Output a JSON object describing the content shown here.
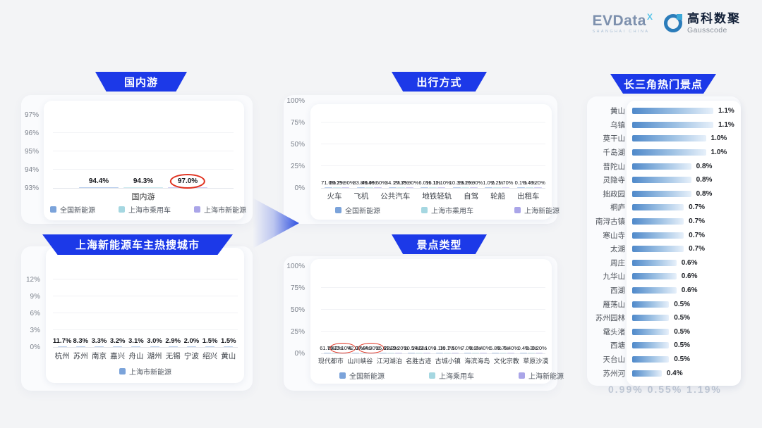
{
  "brand": {
    "evdata": "EVData",
    "evdata_sup": "X",
    "evdata_sub": "SHANGHAI CHINA",
    "gausscode_cn": "高科数聚",
    "gausscode_en": "Gausscode"
  },
  "colors": {
    "banner_blue": "#1c39e8",
    "series": [
      "#7ba3da",
      "#a5d7e1",
      "#aaa5e8"
    ],
    "hbar_gradient_start": "#4f89ca",
    "hbar_gradient_end": "#e7f0fa",
    "highlight_red": "#e0311f"
  },
  "watermark": "0.99%  0.55%  1.19%",
  "chart_data": [
    {
      "id": "domestic-travel",
      "type": "bar",
      "title": "国内游",
      "xlabel": "国内游",
      "categories": [
        "国内游"
      ],
      "ylim": [
        93,
        97
      ],
      "yticks": [
        "93%",
        "94%",
        "95%",
        "96%",
        "97%"
      ],
      "ytick_values": [
        93,
        94,
        95,
        96,
        97
      ],
      "series": [
        {
          "name": "全国新能源",
          "values": [
            94.4
          ],
          "labels": [
            "94.4%"
          ]
        },
        {
          "name": "上海市乘用车",
          "values": [
            94.3
          ],
          "labels": [
            "94.3%"
          ]
        },
        {
          "name": "上海市新能源",
          "values": [
            97.0
          ],
          "labels": [
            "97.0%"
          ],
          "highlight": [
            0
          ]
        }
      ]
    },
    {
      "id": "hot-cities",
      "type": "bar",
      "title": "上海新能源车主热搜城市",
      "xlabel": "",
      "categories": [
        "杭州",
        "苏州",
        "南京",
        "嘉兴",
        "舟山",
        "湖州",
        "无锡",
        "宁波",
        "绍兴",
        "黄山"
      ],
      "ylim": [
        0,
        13
      ],
      "yticks": [
        "0%",
        "3%",
        "6%",
        "9%",
        "12%"
      ],
      "ytick_values": [
        0,
        3,
        6,
        9,
        12
      ],
      "series": [
        {
          "name": "上海市新能源",
          "values": [
            11.7,
            8.3,
            3.3,
            3.2,
            3.1,
            3.0,
            2.9,
            2.0,
            1.5,
            1.5
          ],
          "labels": [
            "11.7%",
            "8.3%",
            "3.3%",
            "3.2%",
            "3.1%",
            "3.0%",
            "2.9%",
            "2.0%",
            "1.5%",
            "1.5%"
          ]
        }
      ]
    },
    {
      "id": "travel-modes",
      "type": "bar",
      "title": "出行方式",
      "xlabel": "",
      "categories": [
        "火车",
        "飞机",
        "公共汽车",
        "地铁轻轨",
        "自驾",
        "轮船",
        "出租车"
      ],
      "ylim": [
        0,
        100
      ],
      "yticks": [
        "0%",
        "25%",
        "50%",
        "75%",
        "100%"
      ],
      "ytick_values": [
        0,
        25,
        50,
        75,
        100
      ],
      "series": [
        {
          "name": "全国新能源",
          "values": [
            71.0,
            33.8,
            34.1,
            6.0,
            10.3,
            1.0,
            0.1
          ],
          "labels": [
            "71.0%",
            "33.8%",
            "34.1%",
            "6.0%",
            "10.3%",
            "1.0%",
            "0.1%"
          ]
        },
        {
          "name": "上海市乘用车",
          "values": [
            60.2,
            46.9,
            27.7,
            16.1,
            13.2,
            2.2,
            0.4
          ],
          "labels": [
            "60.2%",
            "46.9%",
            "27.7%",
            "16.1%",
            "13.2%",
            "2.2%",
            "0.4%"
          ]
        },
        {
          "name": "上海新能源",
          "values": [
            75.9,
            46.5,
            35.9,
            12.1,
            10.9,
            1.7,
            0.2
          ],
          "labels": [
            "75.90%",
            "46.50%",
            "35.90%",
            "12.10%",
            "10.90%",
            "1.70%",
            "0.20%"
          ]
        }
      ]
    },
    {
      "id": "attraction-types",
      "type": "bar",
      "title": "景点类型",
      "xlabel": "",
      "categories": [
        "现代都市",
        "山川峡谷",
        "江河湖泊",
        "名胜古迹",
        "古城小镇",
        "海滨海岛",
        "文化宗教",
        "草原沙漠"
      ],
      "ylim": [
        0,
        100
      ],
      "yticks": [
        "0%",
        "25%",
        "50%",
        "75%",
        "100%"
      ],
      "ytick_values": [
        0,
        25,
        50,
        75,
        100
      ],
      "series": [
        {
          "name": "全国新能源",
          "values": [
            61.7,
            42.0,
            15.6,
            10.5,
            3.1,
            7.0,
            5.8,
            0.4
          ],
          "labels": [
            "61.7%",
            "42.0%",
            "15.6%",
            "10.5%",
            "3.1%",
            "7.0%",
            "5.8%",
            "0.4%"
          ]
        },
        {
          "name": "上海乘用车",
          "values": [
            59.2,
            37.3,
            22.2,
            14.6,
            10.1,
            8.9,
            8.7,
            0.3
          ],
          "labels": [
            "59.2%",
            "37.3%",
            "22.2%",
            "14.6%",
            "10.1%",
            "8.9%",
            "8.7%",
            "0.3%"
          ]
        },
        {
          "name": "上海新能源",
          "values": [
            73.1,
            44.9,
            19.2,
            11.1,
            7.5,
            8.4,
            6.4,
            0.2
          ],
          "labels": [
            "73.10%",
            "44.90%",
            "19.20%",
            "11.10%",
            "7.50%",
            "8.40%",
            "6.40%",
            "0.20%"
          ],
          "highlight": [
            0,
            1
          ]
        }
      ]
    },
    {
      "id": "hot-attractions",
      "type": "bar-horizontal",
      "title": "长三角热门景点",
      "categories": [
        "黄山",
        "乌镇",
        "莫干山",
        "千岛湖",
        "普陀山",
        "灵隐寺",
        "拙政园",
        "桐庐",
        "南浔古镇",
        "寒山寺",
        "太湖",
        "周庄",
        "九华山",
        "西湖",
        "雁荡山",
        "苏州园林",
        "鼋头渚",
        "西塘",
        "天台山",
        "苏州河"
      ],
      "values": [
        1.1,
        1.1,
        1.0,
        1.0,
        0.8,
        0.8,
        0.8,
        0.7,
        0.7,
        0.7,
        0.7,
        0.6,
        0.6,
        0.6,
        0.5,
        0.5,
        0.5,
        0.5,
        0.5,
        0.4
      ],
      "labels": [
        "1.1%",
        "1.1%",
        "1.0%",
        "1.0%",
        "0.8%",
        "0.8%",
        "0.8%",
        "0.7%",
        "0.7%",
        "0.7%",
        "0.7%",
        "0.6%",
        "0.6%",
        "0.6%",
        "0.5%",
        "0.5%",
        "0.5%",
        "0.5%",
        "0.5%",
        "0.4%"
      ],
      "xlim": [
        0,
        1.1
      ]
    }
  ]
}
